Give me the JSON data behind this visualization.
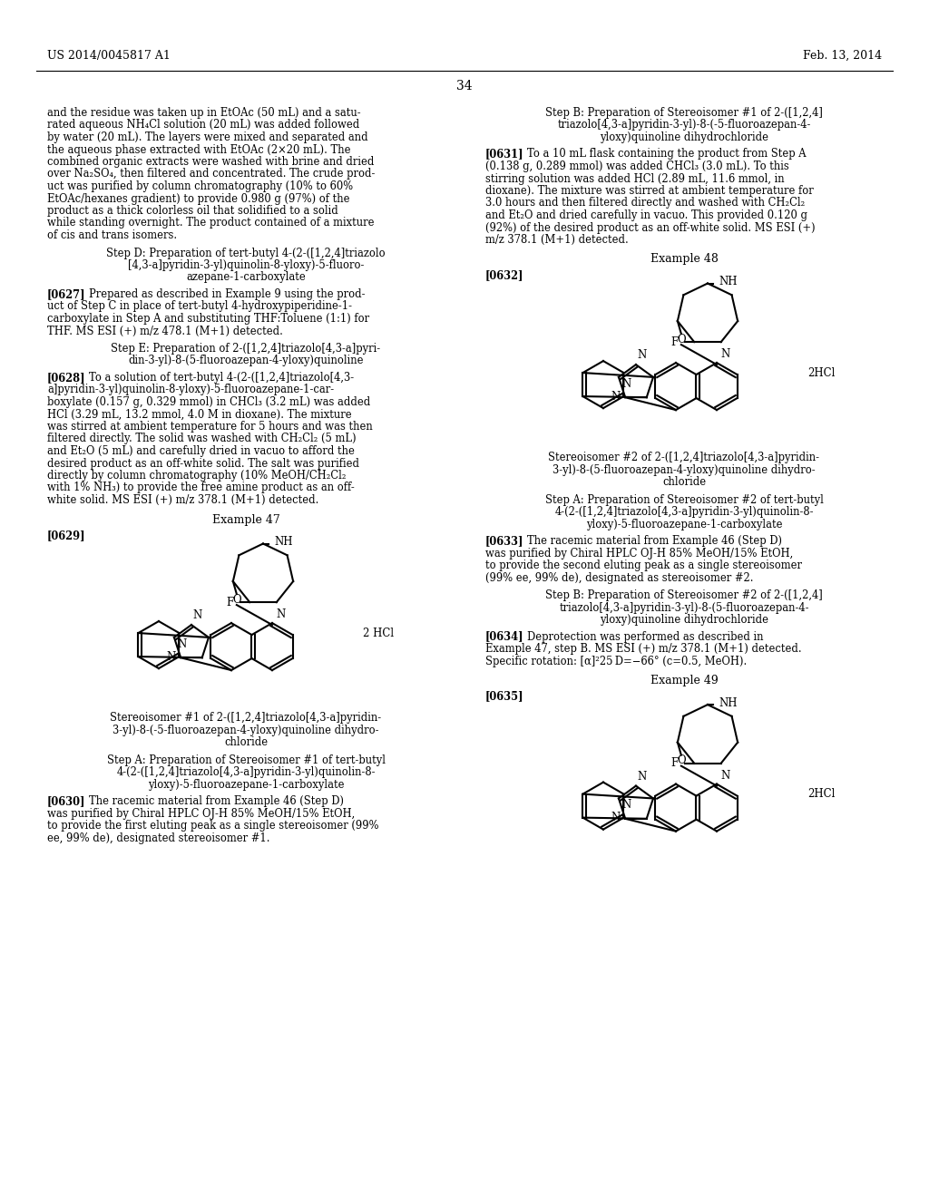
{
  "bg": "#ffffff",
  "header_left": "US 2014/0045817 A1",
  "header_right": "Feb. 13, 2014",
  "page_num": "34"
}
